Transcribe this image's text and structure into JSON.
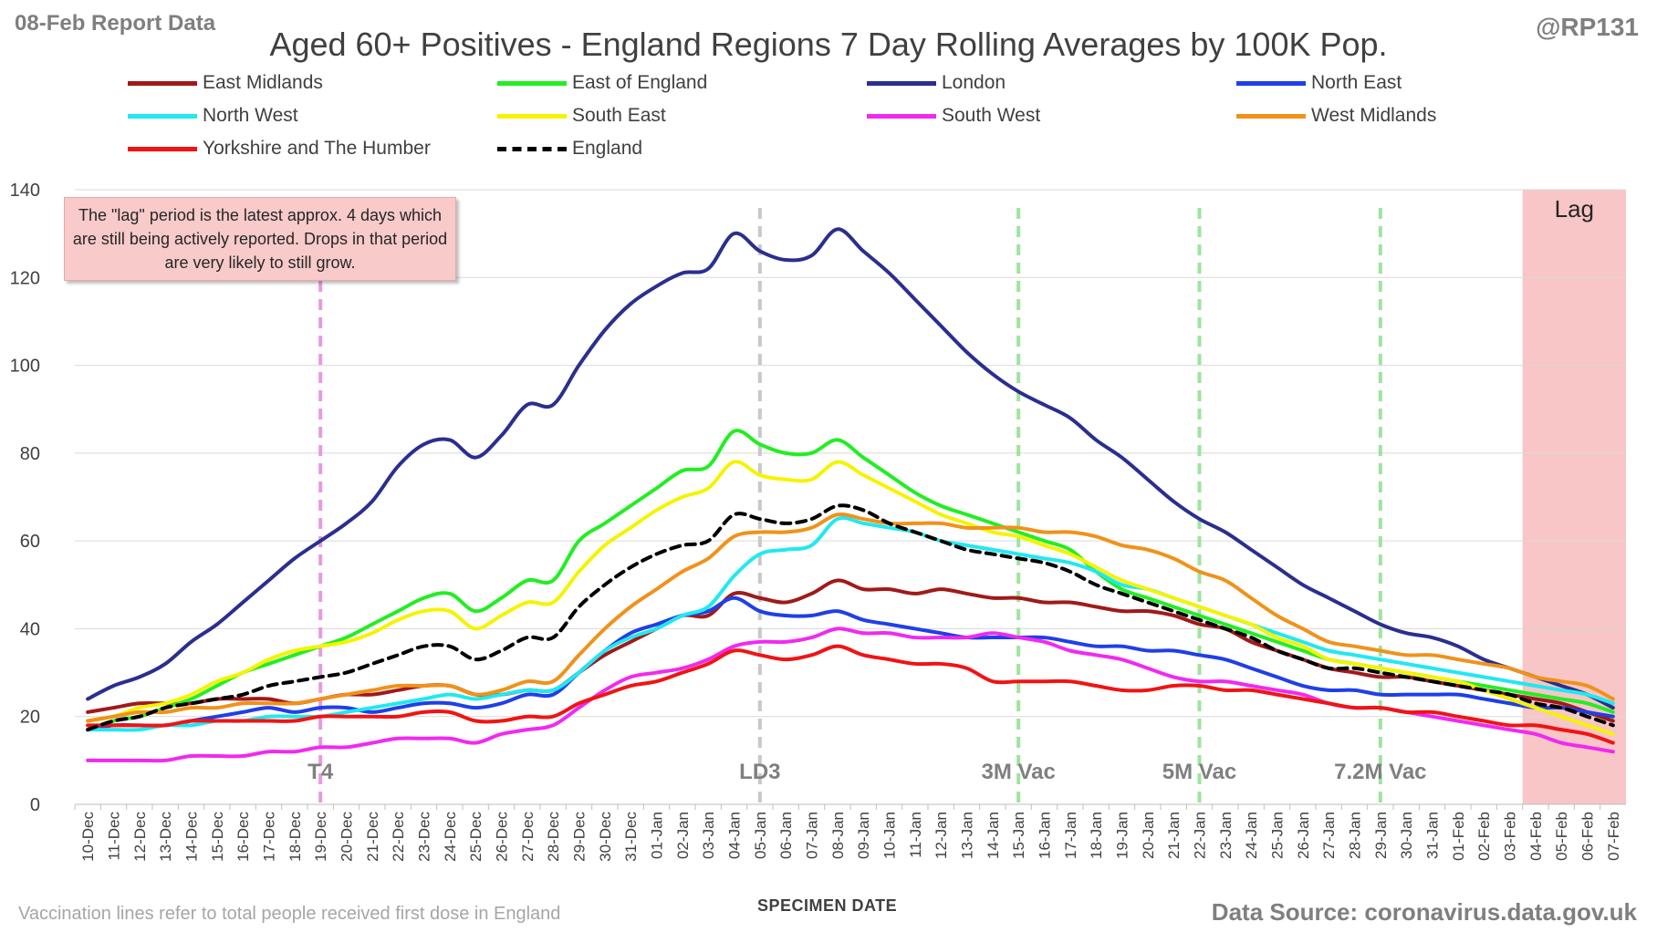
{
  "header": {
    "report_label": "08-Feb Report Data",
    "handle": "@RP131",
    "title": "Aged 60+ Positives - England Regions 7 Day Rolling Averages by 100K Pop."
  },
  "lag_note": "The \"lag\" period is the latest approx. 4 days which are still being actively reported. Drops in that period are very likely to still grow.",
  "footer": {
    "vaccination_note": "Vaccination lines refer to total people received first dose in England",
    "x_axis_title": "SPECIMEN DATE",
    "source": "Data Source: coronavirus.data.gov.uk"
  },
  "chart_data": {
    "type": "line",
    "title": "Aged 60+ Positives - England Regions 7 Day Rolling Averages by 100K Pop.",
    "xlabel": "SPECIMEN DATE",
    "ylabel": "",
    "ylim": [
      0,
      140
    ],
    "yticks": [
      0,
      20,
      40,
      60,
      80,
      100,
      120,
      140
    ],
    "grid": true,
    "legend_position": "top",
    "categories": [
      "10-Dec",
      "11-Dec",
      "12-Dec",
      "13-Dec",
      "14-Dec",
      "15-Dec",
      "16-Dec",
      "17-Dec",
      "18-Dec",
      "19-Dec",
      "20-Dec",
      "21-Dec",
      "22-Dec",
      "23-Dec",
      "24-Dec",
      "25-Dec",
      "26-Dec",
      "27-Dec",
      "28-Dec",
      "29-Dec",
      "30-Dec",
      "31-Dec",
      "01-Jan",
      "02-Jan",
      "03-Jan",
      "04-Jan",
      "05-Jan",
      "06-Jan",
      "07-Jan",
      "08-Jan",
      "09-Jan",
      "10-Jan",
      "11-Jan",
      "12-Jan",
      "13-Jan",
      "14-Jan",
      "15-Jan",
      "16-Jan",
      "17-Jan",
      "18-Jan",
      "19-Jan",
      "20-Jan",
      "21-Jan",
      "22-Jan",
      "23-Jan",
      "24-Jan",
      "25-Jan",
      "26-Jan",
      "27-Jan",
      "28-Jan",
      "29-Jan",
      "30-Jan",
      "31-Jan",
      "01-Feb",
      "02-Feb",
      "03-Feb",
      "04-Feb",
      "05-Feb",
      "06-Feb",
      "07-Feb"
    ],
    "series": [
      {
        "name": "East Midlands",
        "color": "#a01a1a",
        "dash": false,
        "values": [
          21,
          22,
          23,
          23,
          23,
          24,
          24,
          24,
          23,
          24,
          25,
          25,
          26,
          27,
          27,
          25,
          25,
          26,
          26,
          30,
          34,
          37,
          40,
          43,
          43,
          48,
          47,
          46,
          48,
          51,
          49,
          49,
          48,
          49,
          48,
          47,
          47,
          46,
          46,
          45,
          44,
          44,
          43,
          41,
          40,
          37,
          35,
          33,
          31,
          30,
          29,
          29,
          28,
          27,
          26,
          25,
          24,
          23,
          21,
          19
        ]
      },
      {
        "name": "East of England",
        "color": "#22ee22",
        "dash": false,
        "values": [
          17,
          19,
          20,
          22,
          24,
          27,
          30,
          32,
          34,
          36,
          38,
          41,
          44,
          47,
          48,
          44,
          47,
          51,
          51,
          60,
          64,
          68,
          72,
          76,
          77,
          85,
          82,
          80,
          80,
          83,
          79,
          75,
          71,
          68,
          66,
          64,
          62,
          60,
          58,
          53,
          49,
          47,
          45,
          43,
          41,
          39,
          37,
          35,
          33,
          32,
          31,
          30,
          29,
          28,
          27,
          26,
          25,
          24,
          23,
          21
        ]
      },
      {
        "name": "London",
        "color": "#2a2f8e",
        "dash": false,
        "values": [
          24,
          27,
          29,
          32,
          37,
          41,
          46,
          51,
          56,
          60,
          64,
          69,
          77,
          82,
          83,
          79,
          84,
          91,
          91,
          100,
          108,
          114,
          118,
          121,
          122,
          130,
          126,
          124,
          125,
          131,
          126,
          121,
          115,
          109,
          103,
          98,
          94,
          91,
          88,
          83,
          79,
          74,
          69,
          65,
          62,
          58,
          54,
          50,
          47,
          44,
          41,
          39,
          38,
          36,
          33,
          31,
          29,
          27,
          25,
          22
        ]
      },
      {
        "name": "North East",
        "color": "#1f3fe8",
        "dash": false,
        "values": [
          17,
          18,
          18,
          18,
          19,
          20,
          21,
          22,
          21,
          22,
          22,
          21,
          22,
          23,
          23,
          22,
          23,
          25,
          25,
          30,
          35,
          39,
          41,
          43,
          44,
          47,
          44,
          43,
          43,
          44,
          42,
          41,
          40,
          39,
          38,
          38,
          38,
          38,
          37,
          36,
          36,
          35,
          35,
          34,
          33,
          31,
          29,
          27,
          26,
          26,
          25,
          25,
          25,
          25,
          24,
          23,
          22,
          22,
          21,
          20
        ]
      },
      {
        "name": "North West",
        "color": "#22e8f0",
        "dash": false,
        "values": [
          17,
          17,
          17,
          18,
          18,
          19,
          19,
          20,
          20,
          20,
          21,
          22,
          23,
          24,
          25,
          24,
          25,
          26,
          26,
          30,
          35,
          38,
          40,
          43,
          45,
          52,
          57,
          58,
          59,
          65,
          64,
          63,
          62,
          60,
          59,
          58,
          57,
          56,
          55,
          53,
          50,
          49,
          47,
          45,
          43,
          41,
          39,
          37,
          35,
          34,
          33,
          32,
          31,
          30,
          29,
          28,
          27,
          26,
          25,
          23
        ]
      },
      {
        "name": "South East",
        "color": "#f4f400",
        "dash": false,
        "values": [
          19,
          20,
          22,
          23,
          25,
          28,
          30,
          33,
          35,
          36,
          37,
          39,
          42,
          44,
          44,
          40,
          43,
          46,
          46,
          53,
          59,
          63,
          67,
          70,
          72,
          78,
          75,
          74,
          74,
          78,
          75,
          72,
          69,
          66,
          64,
          62,
          61,
          59,
          57,
          54,
          51,
          49,
          47,
          45,
          43,
          41,
          38,
          36,
          33,
          32,
          31,
          30,
          29,
          28,
          26,
          24,
          22,
          20,
          18,
          16
        ]
      },
      {
        "name": "South West",
        "color": "#f02af0",
        "dash": false,
        "values": [
          10,
          10,
          10,
          10,
          11,
          11,
          11,
          12,
          12,
          13,
          13,
          14,
          15,
          15,
          15,
          14,
          16,
          17,
          18,
          22,
          26,
          29,
          30,
          31,
          33,
          36,
          37,
          37,
          38,
          40,
          39,
          39,
          38,
          38,
          38,
          39,
          38,
          37,
          35,
          34,
          33,
          31,
          29,
          28,
          28,
          27,
          26,
          25,
          23,
          22,
          22,
          21,
          20,
          19,
          18,
          17,
          16,
          14,
          13,
          12
        ]
      },
      {
        "name": "West Midlands",
        "color": "#f0921a",
        "dash": false,
        "values": [
          19,
          20,
          21,
          21,
          22,
          22,
          23,
          23,
          23,
          24,
          25,
          26,
          27,
          27,
          27,
          25,
          26,
          28,
          28,
          34,
          40,
          45,
          49,
          53,
          56,
          61,
          62,
          62,
          63,
          66,
          65,
          64,
          64,
          64,
          63,
          63,
          63,
          62,
          62,
          61,
          59,
          58,
          56,
          53,
          51,
          47,
          43,
          40,
          37,
          36,
          35,
          34,
          34,
          33,
          32,
          31,
          29,
          28,
          27,
          24
        ]
      },
      {
        "name": "Yorkshire and The Humber",
        "color": "#f01414",
        "dash": false,
        "values": [
          18,
          18,
          18,
          18,
          19,
          19,
          19,
          19,
          19,
          20,
          20,
          20,
          20,
          21,
          21,
          19,
          19,
          20,
          20,
          23,
          25,
          27,
          28,
          30,
          32,
          35,
          34,
          33,
          34,
          36,
          34,
          33,
          32,
          32,
          31,
          28,
          28,
          28,
          28,
          27,
          26,
          26,
          27,
          27,
          26,
          26,
          25,
          24,
          23,
          22,
          22,
          21,
          21,
          20,
          19,
          18,
          18,
          17,
          16,
          14
        ]
      },
      {
        "name": "England",
        "color": "#000000",
        "dash": true,
        "values": [
          17,
          19,
          20,
          22,
          23,
          24,
          25,
          27,
          28,
          29,
          30,
          32,
          34,
          36,
          36,
          33,
          35,
          38,
          38,
          45,
          50,
          54,
          57,
          59,
          60,
          66,
          65,
          64,
          65,
          68,
          67,
          64,
          62,
          60,
          58,
          57,
          56,
          55,
          53,
          50,
          48,
          46,
          44,
          42,
          40,
          38,
          35,
          33,
          31,
          31,
          30,
          29,
          28,
          27,
          26,
          25,
          23,
          22,
          20,
          18
        ]
      }
    ],
    "vertical_markers": [
      {
        "label": "T4",
        "category": "19-Dec",
        "color": "#e79ae0"
      },
      {
        "label": "LD3",
        "category": "05-Jan",
        "color": "#c8c8c8"
      },
      {
        "label": "3M Vac",
        "category": "15-Jan",
        "color": "#9ee49e"
      },
      {
        "label": "5M Vac",
        "category": "22-Jan",
        "color": "#9ee49e"
      },
      {
        "label": "7.2M Vac",
        "category": "29-Jan",
        "color": "#9ee49e"
      }
    ],
    "lag_region": {
      "label": "Lag",
      "start": "04-Feb",
      "end": "07-Feb",
      "color": "#f8c3c3"
    }
  }
}
